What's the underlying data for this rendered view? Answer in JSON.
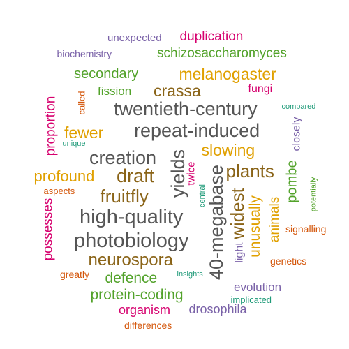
{
  "palette": {
    "purple": "#7a62a8",
    "magenta": "#d6006e",
    "green": "#52a22a",
    "gold": "#e0a000",
    "orange": "#d4560a",
    "teal": "#1e9a78",
    "brown": "#8a6418",
    "gray": "#555555"
  },
  "words": [
    {
      "text": "unexpected",
      "color": "purple"
    },
    {
      "text": "duplication",
      "color": "magenta"
    },
    {
      "text": "biochemistry",
      "color": "purple"
    },
    {
      "text": "schizosaccharomyces",
      "color": "green"
    },
    {
      "text": "secondary",
      "color": "green"
    },
    {
      "text": "melanogaster",
      "color": "gold"
    },
    {
      "text": "fission",
      "color": "green"
    },
    {
      "text": "crassa",
      "color": "brown"
    },
    {
      "text": "fungi",
      "color": "magenta"
    },
    {
      "text": "called",
      "color": "orange",
      "rotated": true
    },
    {
      "text": "compared",
      "color": "teal"
    },
    {
      "text": "proportion",
      "color": "magenta",
      "rotated": true
    },
    {
      "text": "twentieth-century",
      "color": "gray"
    },
    {
      "text": "fewer",
      "color": "gold"
    },
    {
      "text": "repeat-induced",
      "color": "gray"
    },
    {
      "text": "closely",
      "color": "purple",
      "rotated": true
    },
    {
      "text": "unique",
      "color": "teal"
    },
    {
      "text": "slowing",
      "color": "gold"
    },
    {
      "text": "creation",
      "color": "gray"
    },
    {
      "text": "yields",
      "color": "gray",
      "rotated": true
    },
    {
      "text": "profound",
      "color": "gold"
    },
    {
      "text": "draft",
      "color": "brown"
    },
    {
      "text": "twice",
      "color": "magenta",
      "rotated": true
    },
    {
      "text": "40-megabase",
      "color": "gray",
      "rotated": true
    },
    {
      "text": "plants",
      "color": "brown"
    },
    {
      "text": "pombe",
      "color": "green",
      "rotated": true
    },
    {
      "text": "potentially",
      "color": "green",
      "rotated": true
    },
    {
      "text": "aspects",
      "color": "orange"
    },
    {
      "text": "fruitfly",
      "color": "brown"
    },
    {
      "text": "central",
      "color": "teal",
      "rotated": true
    },
    {
      "text": "widest",
      "color": "brown",
      "rotated": true
    },
    {
      "text": "unusually",
      "color": "gold",
      "rotated": true
    },
    {
      "text": "animals",
      "color": "gold",
      "rotated": true
    },
    {
      "text": "possesses",
      "color": "magenta",
      "rotated": true
    },
    {
      "text": "high-quality",
      "color": "gray"
    },
    {
      "text": "signalling",
      "color": "orange"
    },
    {
      "text": "photobiology",
      "color": "gray"
    },
    {
      "text": "light",
      "color": "purple",
      "rotated": true
    },
    {
      "text": "neurospora",
      "color": "brown"
    },
    {
      "text": "genetics",
      "color": "orange"
    },
    {
      "text": "greatly",
      "color": "orange"
    },
    {
      "text": "insights",
      "color": "teal"
    },
    {
      "text": "defence",
      "color": "green"
    },
    {
      "text": "evolution",
      "color": "purple"
    },
    {
      "text": "protein-coding",
      "color": "green"
    },
    {
      "text": "implicated",
      "color": "teal"
    },
    {
      "text": "organism",
      "color": "magenta"
    },
    {
      "text": "drosophila",
      "color": "purple"
    },
    {
      "text": "differences",
      "color": "orange"
    }
  ]
}
